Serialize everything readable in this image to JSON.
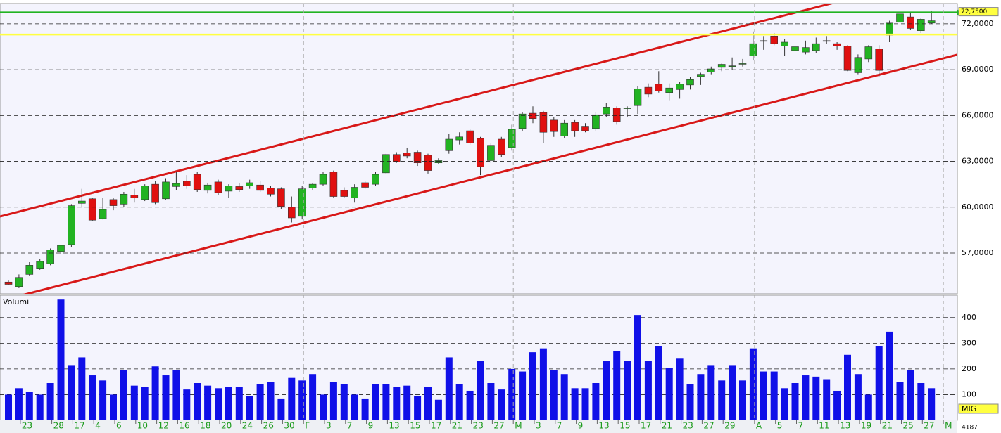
{
  "chart_data": [
    {
      "type": "candlestick",
      "open": [
        55.1,
        54.8,
        55.6,
        56.0,
        56.3,
        57.1,
        57.55,
        60.25,
        60.55,
        59.25,
        60.5,
        60.2,
        60.8,
        60.5,
        61.5,
        60.55,
        61.35,
        61.7,
        62.15,
        61.1,
        61.65,
        61.05,
        61.35,
        61.4,
        61.45,
        61.25,
        61.2,
        60.0,
        59.4,
        61.25,
        61.5,
        62.3,
        61.1,
        60.6,
        61.6,
        61.5,
        62.25,
        63.45,
        63.55,
        63.6,
        63.4,
        62.9,
        63.7,
        64.4,
        65.0,
        64.5,
        63.05,
        64.45,
        63.9,
        65.15,
        66.15,
        66.2,
        65.7,
        64.65,
        65.55,
        65.3,
        65.15,
        66.1,
        66.5,
        66.45,
        66.65,
        67.85,
        68.05,
        67.5,
        67.7,
        68.0,
        68.55,
        68.85,
        69.15,
        69.25,
        69.4,
        69.9,
        70.9,
        71.2,
        70.55,
        70.25,
        70.15,
        70.25,
        70.9,
        70.7,
        70.55,
        68.8,
        69.7,
        70.35,
        71.25,
        72.1,
        72.45,
        71.55,
        72.05,
        null
      ],
      "high": [
        55.2,
        55.6,
        56.4,
        56.6,
        57.3,
        58.3,
        60.2,
        61.2,
        60.6,
        60.6,
        60.6,
        61.0,
        61.2,
        61.5,
        61.7,
        61.9,
        62.3,
        62.1,
        62.3,
        61.6,
        61.8,
        61.5,
        61.6,
        61.8,
        61.7,
        61.4,
        61.3,
        60.7,
        61.4,
        61.6,
        62.3,
        62.4,
        61.3,
        61.5,
        61.7,
        62.3,
        63.5,
        63.6,
        63.9,
        63.7,
        63.5,
        63.2,
        64.8,
        64.9,
        65.1,
        64.6,
        64.2,
        64.6,
        65.4,
        66.2,
        66.6,
        66.3,
        65.9,
        65.7,
        65.7,
        65.5,
        66.2,
        66.8,
        66.6,
        66.6,
        67.9,
        68.1,
        68.9,
        68.1,
        68.2,
        68.5,
        68.8,
        69.2,
        69.4,
        69.8,
        69.7,
        71.5,
        71.2,
        71.4,
        71.0,
        70.7,
        70.9,
        71.1,
        71.2,
        70.8,
        70.6,
        70.0,
        70.6,
        70.6,
        72.2,
        72.7,
        72.7,
        72.4,
        72.85,
        null
      ],
      "low": [
        54.9,
        54.7,
        55.5,
        55.9,
        56.2,
        57.0,
        57.4,
        60.0,
        59.1,
        59.2,
        59.8,
        60.0,
        60.3,
        60.4,
        60.2,
        60.5,
        61.1,
        61.2,
        61.0,
        60.9,
        60.8,
        60.6,
        61.0,
        61.2,
        61.0,
        60.7,
        59.9,
        59.0,
        59.2,
        61.1,
        61.4,
        60.6,
        60.6,
        60.3,
        61.2,
        61.4,
        62.2,
        62.9,
        63.2,
        62.7,
        62.2,
        62.8,
        63.5,
        64.1,
        64.1,
        62.1,
        62.9,
        63.3,
        63.7,
        65.0,
        65.5,
        64.2,
        64.6,
        64.5,
        64.6,
        64.9,
        65.0,
        65.9,
        65.4,
        65.9,
        66.1,
        67.2,
        67.5,
        67.0,
        67.1,
        67.7,
        68.0,
        68.7,
        68.9,
        69.0,
        69.2,
        69.6,
        70.3,
        70.6,
        69.9,
        70.1,
        70.0,
        70.1,
        70.7,
        70.3,
        68.9,
        68.7,
        69.5,
        68.5,
        70.8,
        71.5,
        71.6,
        71.4,
        72.0,
        null
      ],
      "close": [
        54.95,
        55.4,
        56.2,
        56.45,
        57.2,
        57.5,
        60.1,
        60.4,
        59.15,
        59.85,
        60.1,
        60.85,
        60.6,
        61.4,
        60.3,
        61.65,
        61.55,
        61.4,
        61.15,
        61.45,
        60.95,
        61.4,
        61.15,
        61.6,
        61.1,
        60.85,
        60.05,
        59.3,
        61.2,
        61.5,
        62.15,
        60.7,
        60.7,
        61.3,
        61.3,
        62.15,
        63.45,
        62.95,
        63.35,
        62.9,
        62.4,
        63.05,
        64.45,
        64.6,
        64.2,
        62.65,
        64.05,
        63.45,
        65.1,
        66.1,
        65.8,
        64.9,
        64.95,
        65.5,
        65.0,
        65.0,
        66.05,
        66.55,
        65.6,
        66.5,
        67.75,
        67.4,
        67.6,
        67.8,
        68.05,
        68.35,
        68.7,
        69.05,
        69.35,
        69.25,
        69.4,
        70.7,
        70.9,
        70.7,
        70.8,
        70.5,
        70.45,
        70.7,
        70.9,
        70.55,
        68.95,
        69.8,
        70.5,
        68.95,
        72.05,
        72.65,
        71.7,
        72.3,
        72.2,
        null
      ],
      "up_color": "#22b322",
      "down_color": "#e01010",
      "ylim": [
        54.33,
        73.33
      ],
      "yticks": [
        {
          "value": 57,
          "label": "57,0000"
        },
        {
          "value": 60,
          "label": "60,0000"
        },
        {
          "value": 63,
          "label": "63,0000"
        },
        {
          "value": 66,
          "label": "66,0000"
        },
        {
          "value": 69,
          "label": "69,0000"
        },
        {
          "value": 72,
          "label": "72,0000"
        }
      ],
      "grid": true,
      "trendlines": [
        {
          "color": "#d81818",
          "start": 59.39,
          "end": 75.45
        },
        {
          "color": "#d81818",
          "start": 53.87,
          "end": 69.98
        }
      ],
      "hlines": [
        {
          "value": 72.75,
          "color": "#22b322",
          "label": "72,7500"
        },
        {
          "value": 71.3,
          "color": "#ffff40"
        }
      ]
    },
    {
      "type": "bar",
      "title": "Volumi",
      "categories": [
        null,
        "23",
        null,
        null,
        "28",
        null,
        "17",
        null,
        "4",
        null,
        "6",
        null,
        "10",
        null,
        "12",
        null,
        "16",
        null,
        "18",
        null,
        "20",
        null,
        "24",
        null,
        "26",
        null,
        "30",
        null,
        "F",
        null,
        "3",
        null,
        "7",
        null,
        "9",
        null,
        "13",
        null,
        "15",
        null,
        "17",
        null,
        "21",
        null,
        "23",
        null,
        "27",
        null,
        "M",
        null,
        "3",
        null,
        "7",
        null,
        "9",
        null,
        "13",
        null,
        "15",
        null,
        "17",
        null,
        "21",
        null,
        "23",
        null,
        "27",
        null,
        "29",
        null,
        null,
        "A",
        null,
        "5",
        null,
        "7",
        null,
        "11",
        null,
        "13",
        null,
        "19",
        null,
        "21",
        null,
        "25",
        null,
        "27",
        null,
        "M"
      ],
      "values": [
        100,
        125,
        110,
        100,
        145,
        470,
        215,
        245,
        175,
        155,
        100,
        195,
        135,
        130,
        210,
        175,
        195,
        120,
        145,
        135,
        125,
        130,
        130,
        95,
        140,
        150,
        85,
        165,
        155,
        180,
        100,
        150,
        140,
        100,
        85,
        140,
        140,
        130,
        135,
        95,
        130,
        80,
        245,
        140,
        115,
        230,
        145,
        120,
        200,
        190,
        265,
        280,
        195,
        180,
        125,
        125,
        145,
        230,
        270,
        230,
        410,
        230,
        290,
        205,
        240,
        140,
        180,
        215,
        155,
        215,
        155,
        280,
        190,
        190,
        125,
        145,
        175,
        170,
        160,
        115,
        255,
        180,
        100,
        290,
        345,
        150,
        195,
        145,
        125,
        null
      ],
      "color": "#1010e8",
      "ylim": [
        0,
        487
      ],
      "yticks": [
        100,
        200,
        300,
        400
      ],
      "grid": true,
      "corner_label": "MIG",
      "footer_value": 4187
    }
  ]
}
